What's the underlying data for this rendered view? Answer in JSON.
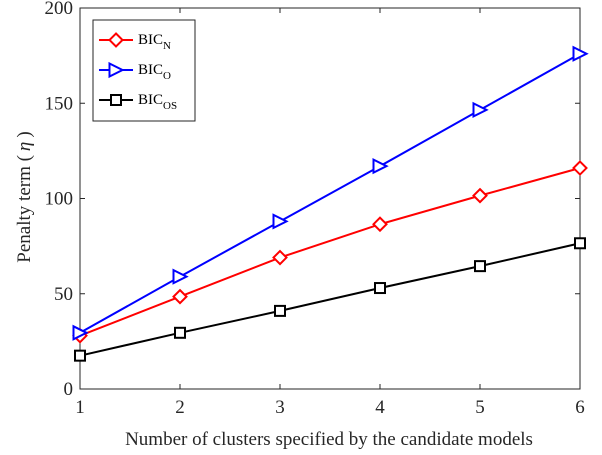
{
  "chart_data": {
    "type": "line",
    "xlabel": "Number of clusters specified by the candidate models",
    "ylabel_prefix": "Penalty term (",
    "ylabel_symbol": "η",
    "ylabel_suffix": ")",
    "xlim": [
      1,
      6
    ],
    "ylim": [
      0,
      200
    ],
    "x_ticks": [
      "1",
      "2",
      "3",
      "4",
      "5",
      "6"
    ],
    "y_ticks": [
      "0",
      "50",
      "100",
      "150",
      "200"
    ],
    "grid": false,
    "legend_position": "top-left",
    "x": [
      1,
      2,
      3,
      4,
      5,
      6
    ],
    "series": [
      {
        "name_main": "BIC",
        "name_sub": "N",
        "color": "#ff0000",
        "marker": "diamond",
        "values": [
          28,
          48.5,
          69,
          86.5,
          101.5,
          116
        ]
      },
      {
        "name_main": "BIC",
        "name_sub": "O",
        "color": "#0000ff",
        "marker": "triangle-right",
        "values": [
          29.5,
          59,
          88,
          117,
          146.5,
          176
        ]
      },
      {
        "name_main": "BIC",
        "name_sub": "OS",
        "color": "#000000",
        "marker": "square",
        "values": [
          17.5,
          29.5,
          41,
          53,
          64.5,
          76.5
        ]
      }
    ]
  }
}
